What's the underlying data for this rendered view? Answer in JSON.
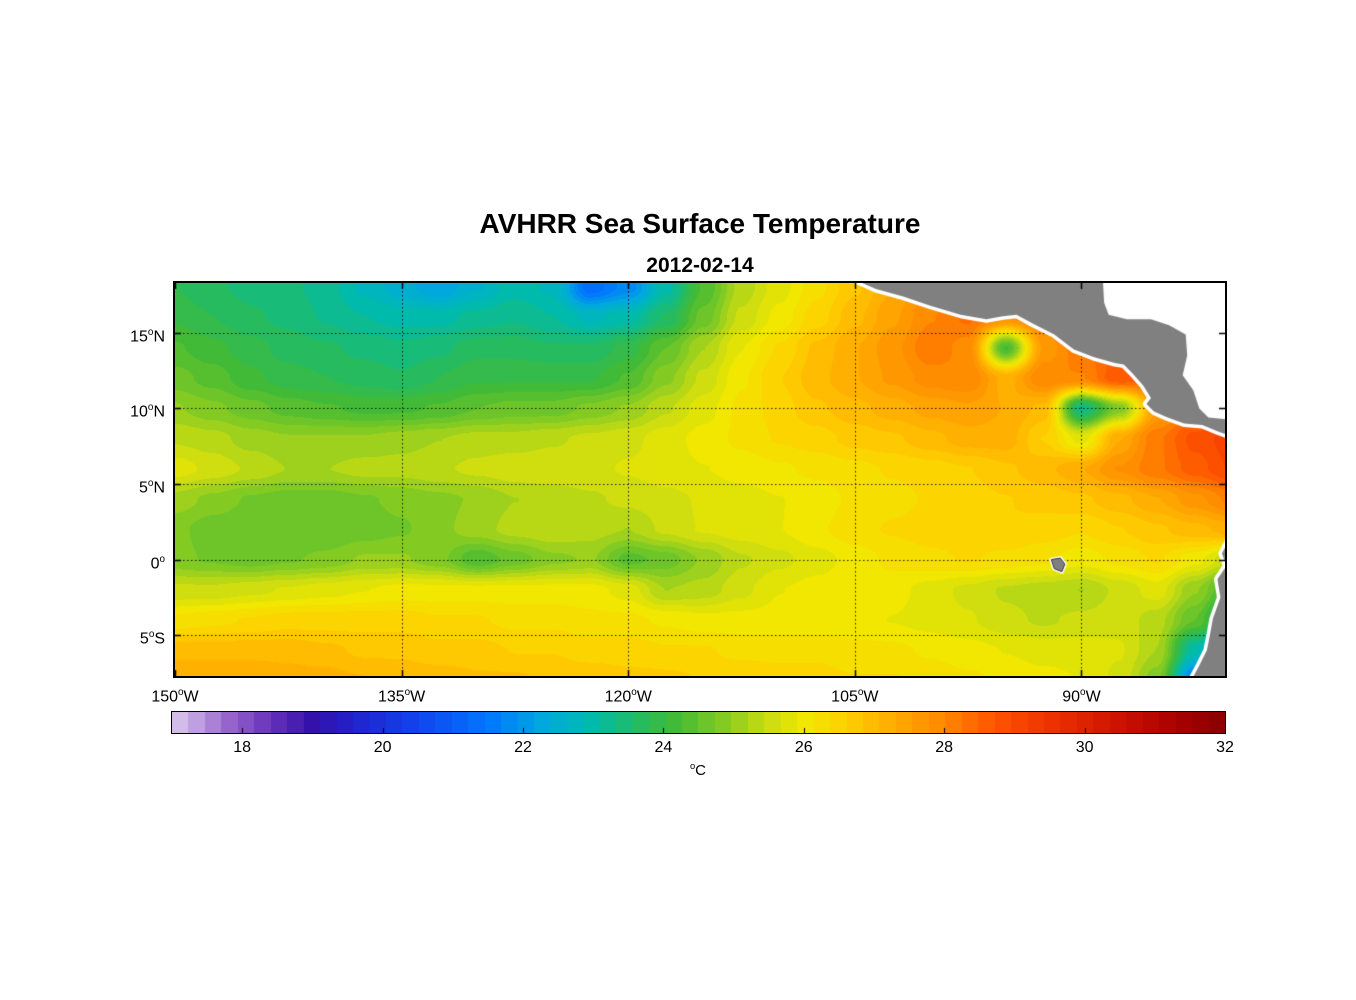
{
  "figure": {
    "background": "#FFFFFF"
  },
  "chart_data": {
    "type": "heatmap",
    "title": "AVHRR Sea Surface Temperature",
    "subtitle": "2012-02-14",
    "deg_symbol": "o",
    "x_axis": {
      "ticks": [
        {
          "value": -150,
          "deg": "150",
          "hem": "W"
        },
        {
          "value": -135,
          "deg": "135",
          "hem": "W"
        },
        {
          "value": -120,
          "deg": "120",
          "hem": "W"
        },
        {
          "value": -105,
          "deg": "105",
          "hem": "W"
        },
        {
          "value": -90,
          "deg": "90",
          "hem": "W"
        }
      ]
    },
    "y_axis": {
      "ticks": [
        {
          "value": 15,
          "deg": "15",
          "hem": "N"
        },
        {
          "value": 10,
          "deg": "10",
          "hem": "N"
        },
        {
          "value": 5,
          "deg": "5",
          "hem": "N"
        },
        {
          "value": 0,
          "deg": "0",
          "hem": ""
        },
        {
          "value": -5,
          "deg": "5",
          "hem": "S"
        }
      ]
    },
    "lon_range": [
      -150,
      -80.5
    ],
    "lat_range": [
      18.3,
      -7.7
    ],
    "gridlines": {
      "lons": [
        -135,
        -120,
        -105,
        -90
      ],
      "lats": [
        15,
        10,
        5,
        0,
        -5
      ],
      "style": "dotted"
    },
    "colorbar": {
      "range": [
        17,
        32
      ],
      "ticks": [
        18,
        20,
        22,
        24,
        26,
        28,
        30,
        32
      ],
      "levels": 64,
      "unit_sup": "o",
      "unit_text": "C"
    },
    "colormap_stops": [
      [
        17.0,
        "#DCCCEE"
      ],
      [
        17.8,
        "#9966CC"
      ],
      [
        18.4,
        "#6633BB"
      ],
      [
        19.0,
        "#3311AA"
      ],
      [
        19.6,
        "#2222CC"
      ],
      [
        20.5,
        "#1144EE"
      ],
      [
        21.5,
        "#0077FF"
      ],
      [
        22.3,
        "#00AADD"
      ],
      [
        23.0,
        "#00BBAA"
      ],
      [
        23.6,
        "#22BB66"
      ],
      [
        24.2,
        "#44BB33"
      ],
      [
        24.9,
        "#88CC22"
      ],
      [
        25.5,
        "#CCDD11"
      ],
      [
        26.0,
        "#F0E800"
      ],
      [
        26.6,
        "#FFD000"
      ],
      [
        27.3,
        "#FFAA00"
      ],
      [
        28.0,
        "#FF8800"
      ],
      [
        28.7,
        "#FF5500"
      ],
      [
        29.5,
        "#EE3300"
      ],
      [
        30.5,
        "#CC1100"
      ],
      [
        31.3,
        "#AA0000"
      ],
      [
        32.0,
        "#880000"
      ]
    ],
    "sst": {
      "units": "degC",
      "lons": [
        -150,
        -147.5,
        -145,
        -142.5,
        -140,
        -137.5,
        -135,
        -132.5,
        -130,
        -127.5,
        -125,
        -122.5,
        -120,
        -117.5,
        -115,
        -112.5,
        -110,
        -107.5,
        -105,
        -102.5,
        -100,
        -97.5,
        -95,
        -92.5,
        -90,
        -87.5,
        -85,
        -82.5,
        -80
      ],
      "lats": [
        18,
        16,
        14,
        12,
        10,
        8,
        6,
        4,
        2,
        0,
        -2,
        -4,
        -6,
        -8
      ],
      "values_c": [
        [
          23.8,
          23.6,
          23.5,
          23.4,
          23.2,
          22.8,
          22.5,
          22.2,
          22.6,
          23.0,
          22.8,
          21.3,
          21.8,
          23.0,
          24.3,
          25.3,
          25.8,
          26.3,
          26.8,
          27.3,
          27.8,
          28.0,
          28.0,
          28.0,
          28.0,
          28.0,
          28.0,
          28.0,
          28.0
        ],
        [
          24.0,
          23.8,
          23.6,
          23.5,
          23.3,
          23.1,
          23.0,
          23.0,
          23.2,
          23.3,
          23.1,
          22.8,
          23.0,
          23.6,
          24.6,
          25.5,
          26.0,
          26.5,
          27.0,
          27.5,
          28.0,
          28.3,
          27.8,
          28.1,
          28.0,
          28.0,
          28.0,
          28.0,
          28.0
        ],
        [
          24.3,
          24.1,
          23.9,
          23.7,
          23.6,
          23.5,
          23.4,
          23.5,
          23.7,
          23.7,
          23.6,
          23.6,
          23.9,
          24.5,
          25.2,
          25.9,
          26.4,
          26.9,
          27.3,
          27.7,
          28.2,
          27.9,
          24.2,
          27.6,
          28.2,
          28.5,
          28.2,
          28.0,
          28.0
        ],
        [
          24.6,
          24.4,
          24.1,
          23.9,
          23.8,
          23.7,
          23.6,
          23.8,
          24.0,
          24.0,
          24.0,
          24.0,
          24.3,
          24.9,
          25.5,
          26.1,
          26.6,
          27.0,
          27.3,
          27.6,
          27.9,
          28.0,
          27.2,
          28.0,
          28.0,
          28.7,
          28.5,
          28.2,
          28.1
        ],
        [
          25.0,
          24.8,
          24.6,
          24.4,
          24.3,
          24.2,
          24.2,
          24.3,
          24.5,
          24.6,
          24.6,
          24.8,
          25.0,
          25.4,
          25.8,
          26.2,
          26.5,
          26.8,
          27.0,
          27.2,
          27.4,
          27.5,
          27.3,
          27.0,
          23.3,
          24.8,
          27.5,
          28.2,
          28.6
        ],
        [
          25.4,
          25.3,
          25.1,
          25.0,
          25.0,
          25.0,
          25.1,
          25.2,
          25.3,
          25.3,
          25.4,
          25.5,
          25.6,
          25.8,
          26.0,
          26.2,
          26.4,
          26.5,
          26.7,
          26.8,
          27.0,
          27.2,
          27.2,
          26.6,
          25.8,
          27.3,
          28.2,
          28.8,
          29.1
        ],
        [
          25.8,
          25.6,
          25.4,
          25.2,
          25.2,
          25.3,
          25.3,
          25.4,
          25.5,
          25.6,
          25.6,
          25.6,
          25.7,
          25.8,
          25.9,
          26.0,
          26.1,
          26.2,
          26.3,
          26.4,
          26.5,
          26.6,
          26.8,
          27.0,
          27.3,
          27.8,
          28.2,
          28.6,
          29.0
        ],
        [
          25.1,
          24.9,
          24.7,
          24.6,
          24.6,
          24.7,
          24.8,
          24.9,
          25.0,
          25.2,
          25.3,
          25.4,
          25.5,
          25.6,
          25.7,
          25.8,
          25.9,
          26.0,
          26.2,
          26.3,
          26.4,
          26.5,
          26.6,
          26.7,
          26.8,
          27.0,
          27.3,
          27.7,
          28.1
        ],
        [
          24.8,
          24.6,
          24.5,
          24.5,
          24.5,
          24.6,
          24.7,
          24.9,
          25.1,
          25.3,
          25.4,
          25.3,
          25.2,
          25.5,
          25.7,
          25.8,
          25.9,
          26.1,
          26.3,
          26.4,
          26.5,
          26.6,
          26.6,
          26.5,
          26.4,
          26.6,
          26.8,
          27.0,
          27.2
        ],
        [
          24.8,
          24.7,
          24.6,
          24.7,
          24.8,
          25.0,
          25.0,
          24.8,
          24.3,
          24.6,
          24.9,
          25.0,
          24.4,
          24.6,
          25.0,
          25.4,
          25.6,
          25.8,
          26.0,
          26.2,
          26.3,
          26.4,
          26.3,
          26.2,
          26.0,
          26.2,
          26.4,
          26.0,
          25.4
        ],
        [
          25.5,
          25.5,
          25.6,
          25.7,
          25.8,
          25.9,
          26.0,
          26.0,
          26.0,
          26.0,
          26.0,
          26.0,
          25.8,
          25.2,
          25.3,
          25.6,
          25.9,
          26.0,
          26.1,
          26.0,
          25.8,
          25.6,
          25.4,
          25.3,
          25.2,
          25.5,
          25.8,
          25.0,
          24.0
        ],
        [
          26.2,
          26.3,
          26.4,
          26.5,
          26.5,
          26.5,
          26.5,
          26.4,
          26.4,
          26.3,
          26.3,
          26.2,
          26.2,
          26.1,
          26.0,
          26.0,
          26.0,
          26.0,
          26.0,
          25.9,
          25.8,
          25.7,
          25.5,
          25.4,
          25.5,
          25.6,
          25.3,
          24.5,
          23.0
        ],
        [
          27.0,
          27.0,
          27.0,
          27.0,
          26.9,
          26.8,
          26.8,
          26.7,
          26.7,
          26.6,
          26.6,
          26.5,
          26.5,
          26.4,
          26.4,
          26.3,
          26.3,
          26.3,
          26.2,
          26.2,
          26.1,
          26.0,
          25.9,
          25.8,
          25.8,
          25.7,
          25.2,
          23.0,
          21.0
        ],
        [
          27.3,
          27.3,
          27.3,
          27.2,
          27.2,
          27.1,
          27.0,
          27.0,
          26.9,
          26.9,
          26.8,
          26.8,
          26.7,
          26.7,
          26.6,
          26.6,
          26.5,
          26.5,
          26.4,
          26.4,
          26.3,
          26.2,
          26.1,
          26.0,
          25.9,
          25.6,
          24.8,
          21.5,
          19.0
        ]
      ]
    },
    "land": {
      "fill": "#808080",
      "coast_fringe": "#FFFFFF",
      "polygons": {
        "central_america": [
          [
            -105.2,
            18.6
          ],
          [
            -103.6,
            17.9
          ],
          [
            -101.8,
            17.4
          ],
          [
            -100.0,
            16.8
          ],
          [
            -98.0,
            16.2
          ],
          [
            -96.3,
            15.9
          ],
          [
            -95.2,
            16.1
          ],
          [
            -94.3,
            16.2
          ],
          [
            -93.2,
            15.6
          ],
          [
            -91.8,
            14.9
          ],
          [
            -90.5,
            13.9
          ],
          [
            -89.2,
            13.4
          ],
          [
            -87.8,
            13.0
          ],
          [
            -87.2,
            12.9
          ],
          [
            -86.6,
            12.3
          ],
          [
            -85.9,
            11.5
          ],
          [
            -85.4,
            10.7
          ],
          [
            -85.7,
            10.3
          ],
          [
            -85.2,
            9.8
          ],
          [
            -84.3,
            9.4
          ],
          [
            -83.2,
            9.0
          ],
          [
            -82.0,
            8.9
          ],
          [
            -81.0,
            8.5
          ],
          [
            -80.2,
            8.2
          ],
          [
            -79.5,
            8.8
          ],
          [
            -79.0,
            9.5
          ],
          [
            -79.0,
            19.5
          ],
          [
            -105.2,
            19.5
          ]
        ],
        "south_america": [
          [
            -80.3,
            1.2
          ],
          [
            -80.7,
            0.4
          ],
          [
            -80.4,
            -0.4
          ],
          [
            -81.0,
            -1.3
          ],
          [
            -80.8,
            -2.5
          ],
          [
            -81.3,
            -3.9
          ],
          [
            -81.5,
            -5.0
          ],
          [
            -81.7,
            -6.0
          ],
          [
            -82.2,
            -7.0
          ],
          [
            -83.0,
            -8.5
          ],
          [
            -75.0,
            -8.5
          ],
          [
            -75.0,
            1.2
          ]
        ],
        "galapagos": [
          [
            -92.0,
            0.0
          ],
          [
            -91.4,
            0.1
          ],
          [
            -91.1,
            -0.3
          ],
          [
            -91.3,
            -0.8
          ],
          [
            -91.8,
            -0.6
          ]
        ]
      },
      "nodata_region": {
        "color": "#FFFFFF",
        "polygon": [
          [
            -88.6,
            18.8
          ],
          [
            -88.5,
            17.0
          ],
          [
            -88.2,
            16.2
          ],
          [
            -87.0,
            15.9
          ],
          [
            -85.4,
            15.9
          ],
          [
            -84.2,
            15.5
          ],
          [
            -83.1,
            14.9
          ],
          [
            -83.0,
            13.5
          ],
          [
            -83.3,
            12.2
          ],
          [
            -82.6,
            11.2
          ],
          [
            -82.2,
            10.0
          ],
          [
            -81.6,
            9.4
          ],
          [
            -80.6,
            9.3
          ],
          [
            -79.8,
            9.2
          ],
          [
            -79.0,
            9.6
          ],
          [
            -79.0,
            18.8
          ]
        ]
      }
    }
  }
}
